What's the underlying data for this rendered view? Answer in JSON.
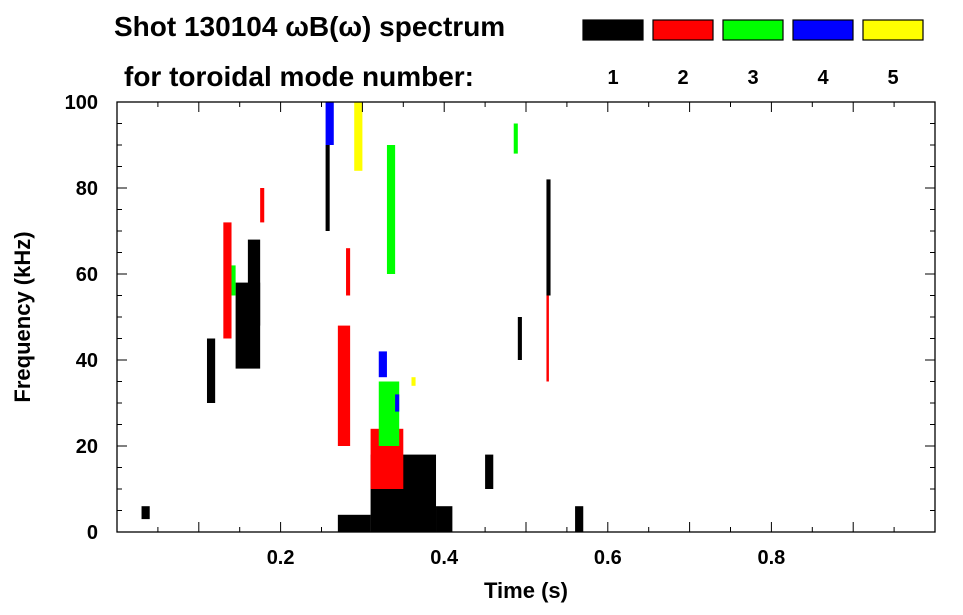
{
  "chart_data": {
    "type": "scatter",
    "title": "Shot 130104 ωB(ω) spectrum",
    "subtitle": "for toroidal mode number:",
    "xlabel": "Time (s)",
    "ylabel": "Frequency (kHz)",
    "xlim": [
      0.0,
      1.0
    ],
    "ylim": [
      0,
      100
    ],
    "x_ticks": [
      0.2,
      0.4,
      0.6,
      0.8
    ],
    "x_tick_labels": [
      "0.2",
      "0.4",
      "0.6",
      "0.8"
    ],
    "y_ticks": [
      0,
      20,
      40,
      60,
      80,
      100
    ],
    "y_tick_labels": [
      "0",
      "20",
      "40",
      "60",
      "80",
      "100"
    ],
    "grid": false,
    "legend_placement": "top-right",
    "legend": [
      {
        "label": "1",
        "color": "#000000"
      },
      {
        "label": "2",
        "color": "#ff0000"
      },
      {
        "label": "3",
        "color": "#00ff00"
      },
      {
        "label": "4",
        "color": "#0000ff"
      },
      {
        "label": "5",
        "color": "#ffff00"
      }
    ],
    "series": [
      {
        "mode": "1",
        "color": "#000000",
        "features": [
          {
            "t": [
              0.16,
              0.175
            ],
            "f": [
              48,
              68
            ]
          },
          {
            "t": [
              0.145,
              0.175
            ],
            "f": [
              38,
              58
            ]
          },
          {
            "t": [
              0.11,
              0.12
            ],
            "f": [
              30,
              45
            ]
          },
          {
            "t": [
              0.255,
              0.26
            ],
            "f": [
              70,
              90
            ]
          },
          {
            "t": [
              0.31,
              0.39
            ],
            "f": [
              0,
              18
            ]
          },
          {
            "t": [
              0.27,
              0.31
            ],
            "f": [
              0,
              4
            ]
          },
          {
            "t": [
              0.39,
              0.41
            ],
            "f": [
              0,
              6
            ]
          },
          {
            "t": [
              0.525,
              0.53
            ],
            "f": [
              55,
              82
            ]
          },
          {
            "t": [
              0.03,
              0.04
            ],
            "f": [
              3,
              6
            ]
          },
          {
            "t": [
              0.56,
              0.57
            ],
            "f": [
              0,
              6
            ]
          },
          {
            "t": [
              0.45,
              0.46
            ],
            "f": [
              10,
              18
            ]
          },
          {
            "t": [
              0.49,
              0.495
            ],
            "f": [
              40,
              50
            ]
          }
        ]
      },
      {
        "mode": "2",
        "color": "#ff0000",
        "features": [
          {
            "t": [
              0.13,
              0.14
            ],
            "f": [
              45,
              72
            ]
          },
          {
            "t": [
              0.175,
              0.18
            ],
            "f": [
              72,
              80
            ]
          },
          {
            "t": [
              0.27,
              0.285
            ],
            "f": [
              20,
              48
            ]
          },
          {
            "t": [
              0.31,
              0.35
            ],
            "f": [
              10,
              24
            ]
          },
          {
            "t": [
              0.28,
              0.285
            ],
            "f": [
              55,
              66
            ]
          },
          {
            "t": [
              0.525,
              0.528
            ],
            "f": [
              35,
              55
            ]
          }
        ]
      },
      {
        "mode": "3",
        "color": "#00ff00",
        "features": [
          {
            "t": [
              0.32,
              0.345
            ],
            "f": [
              20,
              35
            ]
          },
          {
            "t": [
              0.33,
              0.34
            ],
            "f": [
              60,
              90
            ]
          },
          {
            "t": [
              0.14,
              0.145
            ],
            "f": [
              55,
              62
            ]
          },
          {
            "t": [
              0.485,
              0.49
            ],
            "f": [
              88,
              95
            ]
          }
        ]
      },
      {
        "mode": "4",
        "color": "#0000ff",
        "features": [
          {
            "t": [
              0.255,
              0.265
            ],
            "f": [
              90,
              100
            ]
          },
          {
            "t": [
              0.32,
              0.33
            ],
            "f": [
              36,
              42
            ]
          },
          {
            "t": [
              0.34,
              0.345
            ],
            "f": [
              28,
              32
            ]
          }
        ]
      },
      {
        "mode": "5",
        "color": "#ffff00",
        "features": [
          {
            "t": [
              0.29,
              0.3
            ],
            "f": [
              84,
              100
            ]
          },
          {
            "t": [
              0.36,
              0.365
            ],
            "f": [
              34,
              36
            ]
          }
        ]
      }
    ]
  }
}
